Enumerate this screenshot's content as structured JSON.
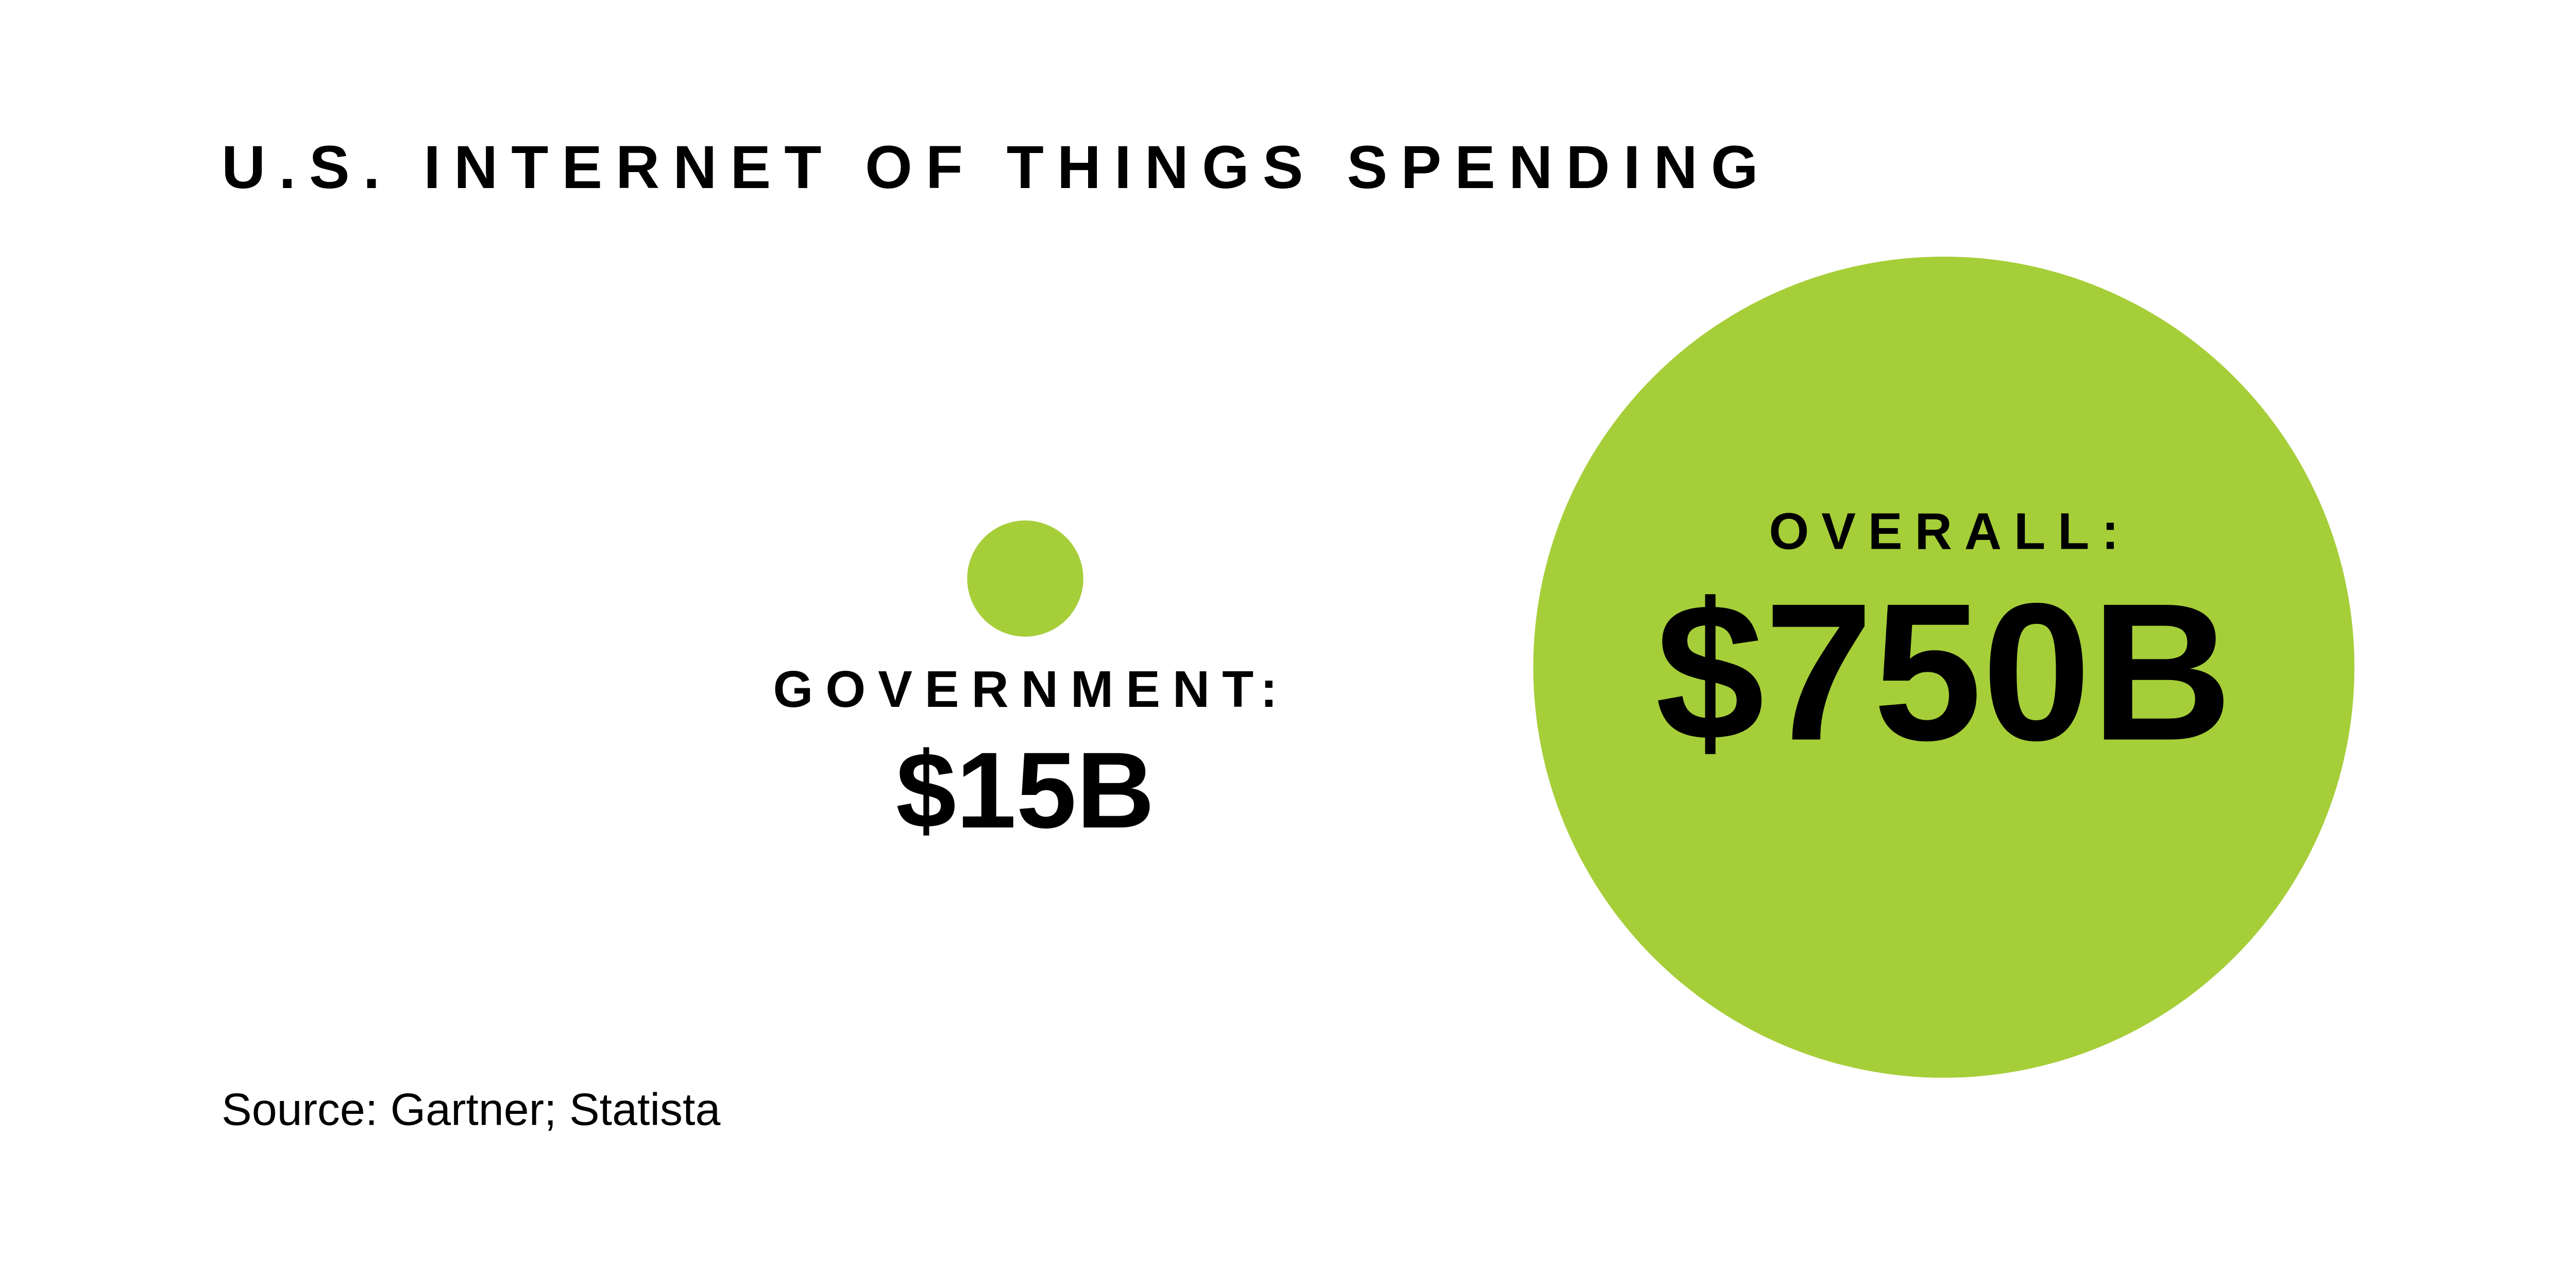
{
  "chart_data": {
    "type": "bubble",
    "title": "U.S. INTERNET OF THINGS SPENDING",
    "categories": [
      "GOVERNMENT:",
      "OVERALL:"
    ],
    "values": [
      15,
      750
    ],
    "value_labels": [
      "$15B",
      "$750B"
    ],
    "color": "#a6ce39",
    "source": "Source: Gartner; Statista"
  }
}
